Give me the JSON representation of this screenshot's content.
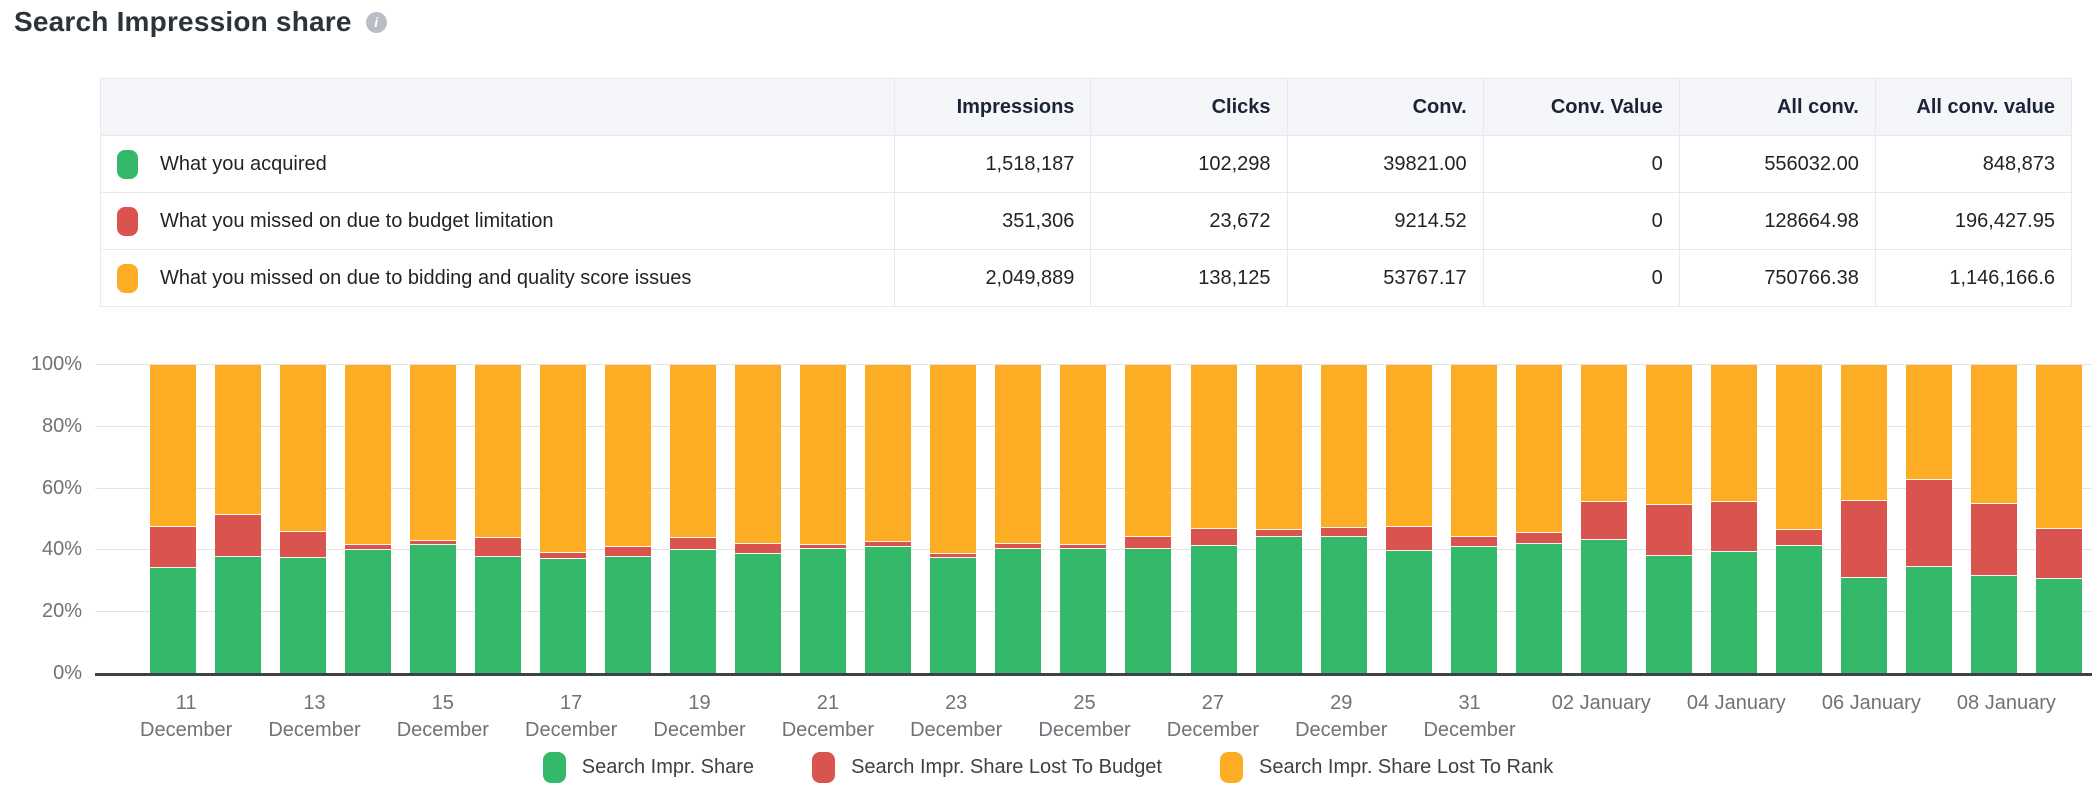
{
  "header": {
    "title": "Search Impression share"
  },
  "colors": {
    "share": "#34b86a",
    "budget": "#d9534f",
    "rank": "#fdad24"
  },
  "table": {
    "columns": [
      "",
      "Impressions",
      "Clicks",
      "Conv.",
      "Conv. Value",
      "All conv.",
      "All conv. value"
    ],
    "rows": [
      {
        "label": "What you acquired",
        "color": "#34b86a",
        "values": [
          "1,518,187",
          "102,298",
          "39821.00",
          "0",
          "556032.00",
          "848,873"
        ]
      },
      {
        "label": "What you missed on due to budget limitation",
        "color": "#d9534f",
        "values": [
          "351,306",
          "23,672",
          "9214.52",
          "0",
          "128664.98",
          "196,427.95"
        ]
      },
      {
        "label": "What you missed on due to bidding and quality score issues",
        "color": "#fdad24",
        "values": [
          "2,049,889",
          "138,125",
          "53767.17",
          "0",
          "750766.38",
          "1,146,166.6"
        ]
      }
    ]
  },
  "chart_data": {
    "type": "bar",
    "stacked": true,
    "unit": "%",
    "ylim": [
      0,
      100
    ],
    "grid": true,
    "y_ticks": [
      "0%",
      "20%",
      "40%",
      "60%",
      "80%",
      "100%"
    ],
    "categories": [
      "11 December",
      "12 December",
      "13 December",
      "14 December",
      "15 December",
      "16 December",
      "17 December",
      "18 December",
      "19 December",
      "20 December",
      "21 December",
      "22 December",
      "23 December",
      "24 December",
      "25 December",
      "26 December",
      "27 December",
      "28 December",
      "29 December",
      "30 December",
      "31 December",
      "01 January",
      "02 January",
      "03 January",
      "04 January",
      "05 January",
      "06 January",
      "07 January",
      "08 January",
      "09 January"
    ],
    "x_tick_labels": [
      {
        "line1": "11",
        "line2": "December"
      },
      {
        "line1": "",
        "line2": ""
      },
      {
        "line1": "13",
        "line2": "December"
      },
      {
        "line1": "",
        "line2": ""
      },
      {
        "line1": "15",
        "line2": "December"
      },
      {
        "line1": "",
        "line2": ""
      },
      {
        "line1": "17",
        "line2": "December"
      },
      {
        "line1": "",
        "line2": ""
      },
      {
        "line1": "19",
        "line2": "December"
      },
      {
        "line1": "",
        "line2": ""
      },
      {
        "line1": "21",
        "line2": "December"
      },
      {
        "line1": "",
        "line2": ""
      },
      {
        "line1": "23",
        "line2": "December"
      },
      {
        "line1": "",
        "line2": ""
      },
      {
        "line1": "25",
        "line2": "December"
      },
      {
        "line1": "",
        "line2": ""
      },
      {
        "line1": "27",
        "line2": "December"
      },
      {
        "line1": "",
        "line2": ""
      },
      {
        "line1": "29",
        "line2": "December"
      },
      {
        "line1": "",
        "line2": ""
      },
      {
        "line1": "31",
        "line2": "December"
      },
      {
        "line1": "",
        "line2": ""
      },
      {
        "line1": "02 January",
        "line2": ""
      },
      {
        "line1": "",
        "line2": ""
      },
      {
        "line1": "04 January",
        "line2": ""
      },
      {
        "line1": "",
        "line2": ""
      },
      {
        "line1": "06 January",
        "line2": ""
      },
      {
        "line1": "",
        "line2": ""
      },
      {
        "line1": "08 January",
        "line2": ""
      },
      {
        "line1": "",
        "line2": ""
      }
    ],
    "series": [
      {
        "name": "Search Impr. Share",
        "color": "#34b86a",
        "values": [
          34.4,
          37.8,
          37.4,
          40.1,
          41.8,
          38.0,
          37.3,
          37.8,
          40.2,
          38.8,
          40.3,
          41.2,
          37.6,
          40.5,
          40.5,
          40.6,
          41.5,
          44.5,
          44.5,
          39.9,
          41.2,
          42.0,
          43.5,
          38.2,
          39.4,
          41.4,
          31.0,
          34.5,
          31.8,
          30.7
        ]
      },
      {
        "name": "Search Impr. Share Lost To Budget",
        "color": "#d9534f",
        "values": [
          13.1,
          13.7,
          8.6,
          1.7,
          1.2,
          6.0,
          1.9,
          3.2,
          3.8,
          3.3,
          1.3,
          1.5,
          1.1,
          1.7,
          1.2,
          3.8,
          5.4,
          2.0,
          2.9,
          7.6,
          3.2,
          3.5,
          12.3,
          16.6,
          16.4,
          5.3,
          24.9,
          28.3,
          23.3,
          16.1
        ]
      },
      {
        "name": "Search Impr. Share Lost To Rank",
        "color": "#fdad24",
        "values": [
          52.5,
          48.5,
          54.0,
          58.2,
          57.0,
          56.0,
          60.8,
          59.0,
          56.0,
          57.9,
          58.4,
          57.3,
          61.3,
          57.8,
          58.3,
          55.6,
          53.1,
          53.5,
          52.6,
          52.5,
          55.6,
          54.5,
          44.2,
          45.2,
          44.2,
          53.3,
          44.1,
          37.2,
          44.9,
          53.2
        ]
      }
    ],
    "legend_position": "bottom"
  },
  "legend": [
    {
      "label": "Search Impr. Share",
      "color": "#34b86a"
    },
    {
      "label": "Search Impr. Share Lost To Budget",
      "color": "#d9534f"
    },
    {
      "label": "Search Impr. Share Lost To Rank",
      "color": "#fdad24"
    }
  ]
}
